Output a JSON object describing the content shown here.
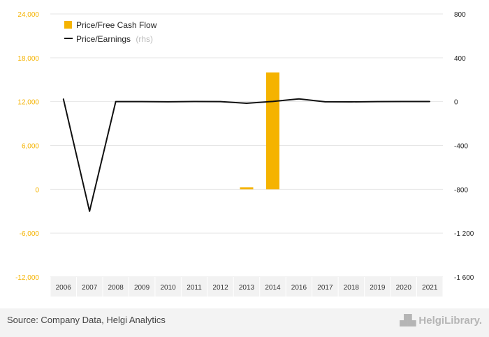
{
  "chart_data": {
    "type": "bar+line",
    "categories": [
      "2006",
      "2007",
      "2008",
      "2009",
      "2010",
      "2011",
      "2012",
      "2013",
      "2014",
      "2016",
      "2017",
      "2018",
      "2019",
      "2020",
      "2021"
    ],
    "series": [
      {
        "name": "Price/Free Cash Flow",
        "type": "bar",
        "axis": "left",
        "color": "#f5b300",
        "values": [
          null,
          null,
          null,
          null,
          null,
          null,
          null,
          280,
          16000,
          null,
          null,
          null,
          null,
          null,
          null
        ]
      },
      {
        "name": "Price/Earnings",
        "suffix": "(rhs)",
        "type": "line",
        "axis": "right",
        "color": "#111111",
        "values": [
          25,
          -1000,
          0,
          0,
          -1,
          1,
          0,
          -15,
          2,
          25,
          -1,
          -2,
          0,
          1,
          1
        ]
      }
    ],
    "y_left": {
      "ticks": [
        24000,
        18000,
        12000,
        6000,
        0,
        -6000,
        -12000
      ],
      "labels": [
        "24,000",
        "18,000",
        "12,000",
        "6,000",
        "0",
        "-6,000",
        "-12,000"
      ],
      "min": -12000,
      "max": 24000,
      "color": "#f5b300"
    },
    "y_right": {
      "ticks": [
        800,
        400,
        0,
        -400,
        -800,
        -1200,
        -1600
      ],
      "labels": [
        "800",
        "400",
        "0",
        "-400",
        "-800",
        "-1 200",
        "-1 600"
      ],
      "min": -1600,
      "max": 800
    },
    "legend_position": "top-left",
    "grid": true
  },
  "footer": {
    "source": "Source: Company Data, Helgi Analytics",
    "brand": "HelgiLibrary."
  }
}
